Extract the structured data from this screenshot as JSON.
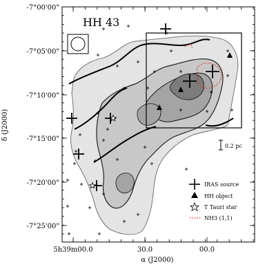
{
  "chart_data": {
    "type": "contour",
    "title": "HH 43",
    "xlabel_main": "α (J2000)",
    "ylabel_main": "δ (J2000)",
    "x_ticks": [
      "5h39m00.0",
      "30.0",
      "00.0"
    ],
    "y_ticks": [
      "-7°00'00\"",
      "-7°05'00\"",
      "-7°10'00\"",
      "-7°15'00\"",
      "-7°20'00\"",
      "-7°25'00\""
    ],
    "scale_bar_label": "0.2 pc",
    "legend": [
      {
        "symbol": "cross",
        "label": "IRAS source"
      },
      {
        "symbol": "triangle",
        "label": "HH object"
      },
      {
        "symbol": "star",
        "label": "T Tauri star"
      },
      {
        "symbol": "dotted-red",
        "label": "NH3 (1,1)"
      }
    ],
    "colors": {
      "level1": "#e4e4e4",
      "level2": "#c8c8c8",
      "level3": "#a4a4a4",
      "level4": "#7c7c7c",
      "nh3": "#e0201c"
    }
  }
}
